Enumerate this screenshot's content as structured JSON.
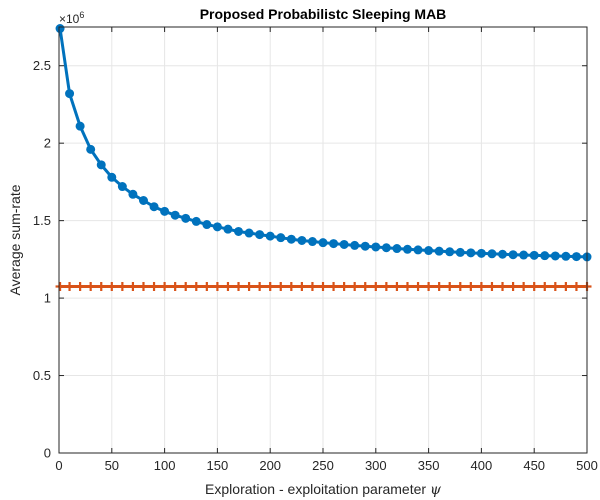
{
  "chart_data": {
    "type": "line",
    "title": "Proposed Probabilistc Sleeping MAB",
    "xlabel": "Exploration - exploitation parameter",
    "xlabel_symbol": "ψ",
    "ylabel": "Average sum-rate",
    "y_exponent_label": "×10",
    "y_exponent_power": "6",
    "xlim": [
      0,
      500
    ],
    "ylim": [
      0,
      2.75
    ],
    "y_scale_factor": 1000000,
    "xticks": [
      0,
      50,
      100,
      150,
      200,
      250,
      300,
      350,
      400,
      450,
      500
    ],
    "yticks": [
      0,
      0.5,
      1,
      1.5,
      2,
      2.5
    ],
    "grid": true,
    "legend": "none",
    "x": [
      1,
      10,
      20,
      30,
      40,
      50,
      60,
      70,
      80,
      90,
      100,
      110,
      120,
      130,
      140,
      150,
      160,
      170,
      180,
      190,
      200,
      210,
      220,
      230,
      240,
      250,
      260,
      270,
      280,
      290,
      300,
      310,
      320,
      330,
      340,
      350,
      360,
      370,
      380,
      390,
      400,
      410,
      420,
      430,
      440,
      450,
      460,
      470,
      480,
      490,
      500
    ],
    "series": [
      {
        "color": "#0072BD",
        "marker": "circle",
        "values": [
          2.74,
          2.32,
          2.11,
          1.96,
          1.86,
          1.78,
          1.72,
          1.67,
          1.63,
          1.59,
          1.56,
          1.535,
          1.515,
          1.495,
          1.475,
          1.46,
          1.445,
          1.43,
          1.42,
          1.41,
          1.4,
          1.39,
          1.38,
          1.372,
          1.365,
          1.358,
          1.352,
          1.346,
          1.34,
          1.335,
          1.33,
          1.325,
          1.32,
          1.315,
          1.311,
          1.307,
          1.303,
          1.299,
          1.295,
          1.292,
          1.289,
          1.286,
          1.283,
          1.28,
          1.278,
          1.276,
          1.274,
          1.272,
          1.27,
          1.268,
          1.266
        ]
      },
      {
        "color": "#D95319",
        "marker": "plus",
        "values": [
          1.075,
          1.075,
          1.075,
          1.075,
          1.075,
          1.075,
          1.075,
          1.075,
          1.075,
          1.075,
          1.075,
          1.075,
          1.075,
          1.075,
          1.075,
          1.075,
          1.075,
          1.075,
          1.075,
          1.075,
          1.075,
          1.075,
          1.075,
          1.075,
          1.075,
          1.075,
          1.075,
          1.075,
          1.075,
          1.075,
          1.075,
          1.075,
          1.075,
          1.075,
          1.075,
          1.075,
          1.075,
          1.075,
          1.075,
          1.075,
          1.075,
          1.075,
          1.075,
          1.075,
          1.075,
          1.075,
          1.075,
          1.075,
          1.075,
          1.075,
          1.075
        ]
      }
    ]
  }
}
